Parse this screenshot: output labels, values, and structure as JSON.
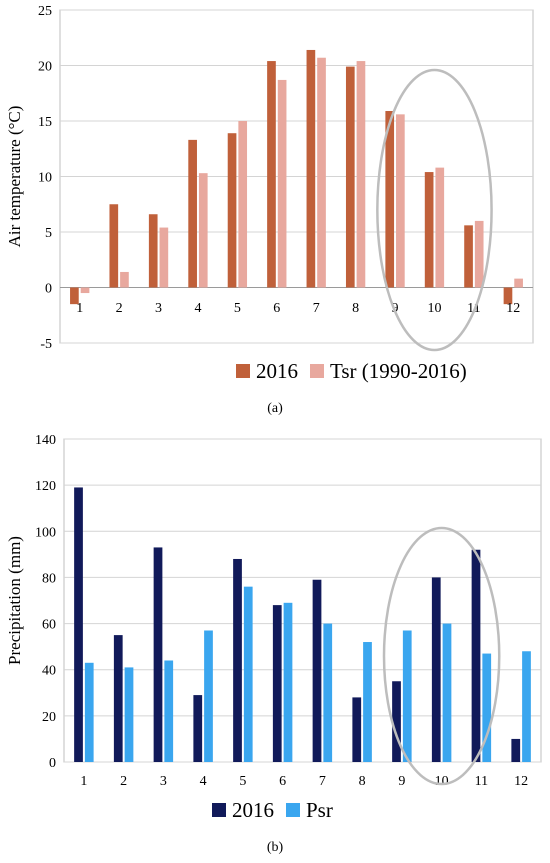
{
  "chart_data": [
    {
      "type": "bar",
      "panel_label": "(a)",
      "ylabel": "Air temperature (°C)",
      "categories": [
        "1",
        "2",
        "3",
        "4",
        "5",
        "6",
        "7",
        "8",
        "9",
        "10",
        "11",
        "12"
      ],
      "ylim": [
        -5,
        25
      ],
      "yticks": [
        -5,
        0,
        5,
        10,
        15,
        20,
        25
      ],
      "grid": true,
      "legend_position": "bottom",
      "series": [
        {
          "name": "2016",
          "color": "#c0603a",
          "values": [
            -1.5,
            7.5,
            6.6,
            13.3,
            13.9,
            20.4,
            21.4,
            19.9,
            15.9,
            10.4,
            5.6,
            -1.5
          ]
        },
        {
          "name": "Tsr (1990-2016)",
          "color": "#e8a89e",
          "values": [
            -0.5,
            1.4,
            5.4,
            10.3,
            15.0,
            18.7,
            20.7,
            20.4,
            15.6,
            10.8,
            6.0,
            0.8
          ]
        }
      ],
      "highlight": {
        "shape": "ellipse",
        "categories": [
          "9",
          "10",
          "11"
        ]
      }
    },
    {
      "type": "bar",
      "panel_label": "(b)",
      "ylabel": "Precipitation (mm)",
      "categories": [
        "1",
        "2",
        "3",
        "4",
        "5",
        "6",
        "7",
        "8",
        "9",
        "10",
        "11",
        "12"
      ],
      "ylim": [
        0,
        140
      ],
      "yticks": [
        0,
        20,
        40,
        60,
        80,
        100,
        120,
        140
      ],
      "grid": true,
      "legend_position": "bottom",
      "series": [
        {
          "name": "2016",
          "color": "#111a5a",
          "values": [
            119,
            55,
            93,
            29,
            88,
            68,
            79,
            28,
            35,
            80,
            92,
            10
          ]
        },
        {
          "name": "Psr",
          "color": "#3aa6ef",
          "values": [
            43,
            41,
            44,
            57,
            76,
            69,
            60,
            52,
            57,
            60,
            47,
            48
          ]
        }
      ],
      "highlight": {
        "shape": "ellipse",
        "categories": [
          "9",
          "10",
          "11"
        ]
      }
    }
  ]
}
